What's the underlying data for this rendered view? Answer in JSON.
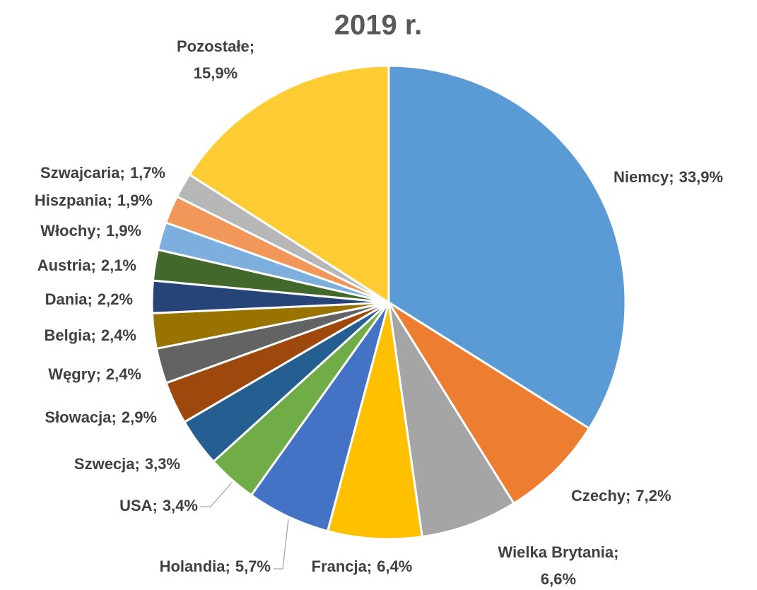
{
  "chart_data": {
    "type": "pie",
    "title": "2019 r.",
    "categories": [
      "Niemcy",
      "Czechy",
      "Wielka Brytania",
      "Francja",
      "Holandia",
      "USA",
      "Szwecja",
      "Słowacja",
      "Węgry",
      "Belgia",
      "Dania",
      "Austria",
      "Włochy",
      "Hiszpania",
      "Szwajcaria",
      "Pozostałe"
    ],
    "values": [
      33.9,
      7.2,
      6.6,
      6.4,
      5.7,
      3.4,
      3.3,
      2.9,
      2.4,
      2.4,
      2.2,
      2.1,
      1.9,
      1.9,
      1.7,
      15.9
    ],
    "value_labels": [
      "33,9%",
      "7,2%",
      "6,6%",
      "6,4%",
      "5,7%",
      "3,4%",
      "3,3%",
      "2,9%",
      "2,4%",
      "2,4%",
      "2,2%",
      "2,1%",
      "1,9%",
      "1,9%",
      "1,7%",
      "15,9%"
    ],
    "label_separator": ";",
    "colors": [
      "#5B9BD5",
      "#ED7D31",
      "#A5A5A5",
      "#FFC000",
      "#4472C4",
      "#70AD47",
      "#255E91",
      "#9E480E",
      "#636363",
      "#997300",
      "#264478",
      "#43682B",
      "#7CAFDD",
      "#F1975A",
      "#B7B7B7",
      "#FFCD33"
    ]
  }
}
